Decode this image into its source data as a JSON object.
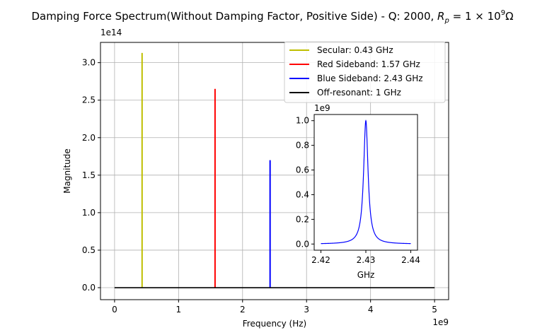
{
  "chart_data": [
    {
      "type": "line",
      "title": "Damping Force Spectrum(Without Damping Factor, Positive Side) - Q: 2000, ",
      "title_math": "R_p = 1 × 10^9 Ω",
      "xlabel": "Frequency (Hz)",
      "ylabel": "Magnitude",
      "x_offset_label": "1e9",
      "y_offset_label": "1e14",
      "xlim": [
        -0.22,
        5.22
      ],
      "ylim": [
        -0.16,
        3.27
      ],
      "x_units": "1e9 Hz",
      "y_units": "1e14",
      "xticks": [
        0,
        1,
        2,
        3,
        4,
        5
      ],
      "xtick_labels": [
        "0",
        "1",
        "2",
        "3",
        "4",
        "5"
      ],
      "yticks": [
        0,
        0.5,
        1.0,
        1.5,
        2.0,
        2.5,
        3.0
      ],
      "ytick_labels": [
        "0.0",
        "0.5",
        "1.0",
        "1.5",
        "2.0",
        "2.5",
        "3.0"
      ],
      "grid": true,
      "legend_position": "top-right",
      "series": [
        {
          "name": "Secular: 0.43 GHz",
          "color": "#bfbf00",
          "peak_x": 0.43,
          "peak_y": 3.13
        },
        {
          "name": "Red Sideband: 1.57 GHz",
          "color": "#ff0000",
          "peak_x": 1.57,
          "peak_y": 2.65
        },
        {
          "name": "Blue Sideband: 2.43 GHz",
          "color": "#0000ff",
          "peak_x": 2.43,
          "peak_y": 1.7
        },
        {
          "name": "Off-resonant: 1 GHz",
          "color": "#000000",
          "x": [
            0,
            5
          ],
          "y": [
            0,
            0
          ]
        }
      ]
    },
    {
      "type": "line",
      "xlabel": "GHz",
      "y_offset_label": "1e9",
      "xlim": [
        2.4185,
        2.4415
      ],
      "ylim": [
        -0.05,
        1.05
      ],
      "xticks": [
        2.42,
        2.43,
        2.44
      ],
      "xtick_labels": [
        "2.42",
        "2.43",
        "2.44"
      ],
      "yticks": [
        0,
        0.2,
        0.4,
        0.6,
        0.8,
        1.0
      ],
      "ytick_labels": [
        "0.0",
        "0.2",
        "0.4",
        "0.6",
        "0.8",
        "1.0"
      ],
      "grid": false,
      "series": [
        {
          "color": "#0000ff",
          "center": 2.43,
          "half_width": 0.0006,
          "peak": 1.0,
          "x_range": [
            2.42,
            2.44
          ]
        }
      ]
    }
  ]
}
